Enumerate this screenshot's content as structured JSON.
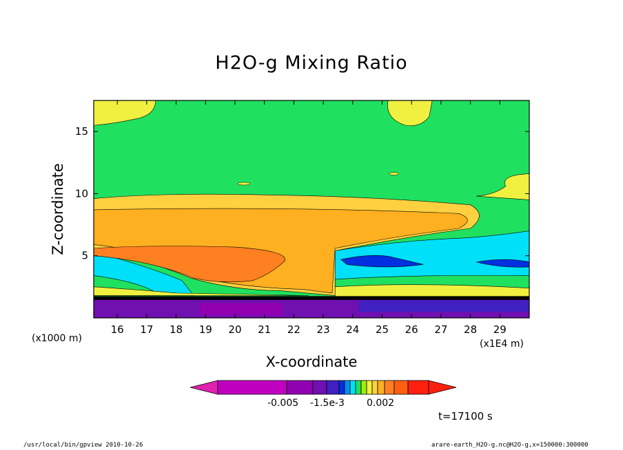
{
  "chart_data": {
    "type": "heatmap",
    "title": "H2O-g Mixing Ratio",
    "xlabel": "X-coordinate",
    "ylabel": "Z-coordinate",
    "x_unit_left": "(x1000 m)",
    "x_unit_right": "(x1E4 m)",
    "xlim": [
      15.2,
      30.0
    ],
    "ylim": [
      0,
      17.5
    ],
    "xticks": [
      16,
      17,
      18,
      19,
      20,
      21,
      22,
      23,
      24,
      25,
      26,
      27,
      28,
      29
    ],
    "yticks": [
      5,
      10,
      15
    ],
    "colorbar": {
      "colors": [
        "#e020b0",
        "#c000c0",
        "#9000b0",
        "#7010b0",
        "#4020c0",
        "#0030e0",
        "#0090f0",
        "#00e0f8",
        "#20e060",
        "#a0f000",
        "#f0f040",
        "#ffd040",
        "#ffb020",
        "#ff8020",
        "#ff6010",
        "#ff2010"
      ],
      "tick_labels": [
        "-0.005",
        "-1.5e-3",
        "0.002"
      ]
    },
    "layers": [
      {
        "name": "surface",
        "color": "#7010b0",
        "zmin": 0,
        "zmax": 1.6
      },
      {
        "name": "boundary",
        "color": "#000000",
        "zmin": 1.5,
        "zmax": 1.7
      },
      {
        "name": "upper",
        "color": "#20e060",
        "zmin": 1.7,
        "zmax": 17.5
      },
      {
        "name": "moist_layer",
        "color": "#ffd040",
        "zmin": 5.2,
        "zmax": 9.8
      },
      {
        "name": "core",
        "color": "#ffb020",
        "zmin": 5.8,
        "zmax": 8.8
      },
      {
        "name": "max",
        "color": "#ff8020",
        "zmin": 2.5,
        "zmax": 5.8
      }
    ]
  },
  "footer": {
    "left": "/usr/local/bin/gpview  2010-10-26",
    "right": "arare-earth_H2O-g.nc@H2O-g,x=150000:300000",
    "time": "t=17100 s"
  }
}
